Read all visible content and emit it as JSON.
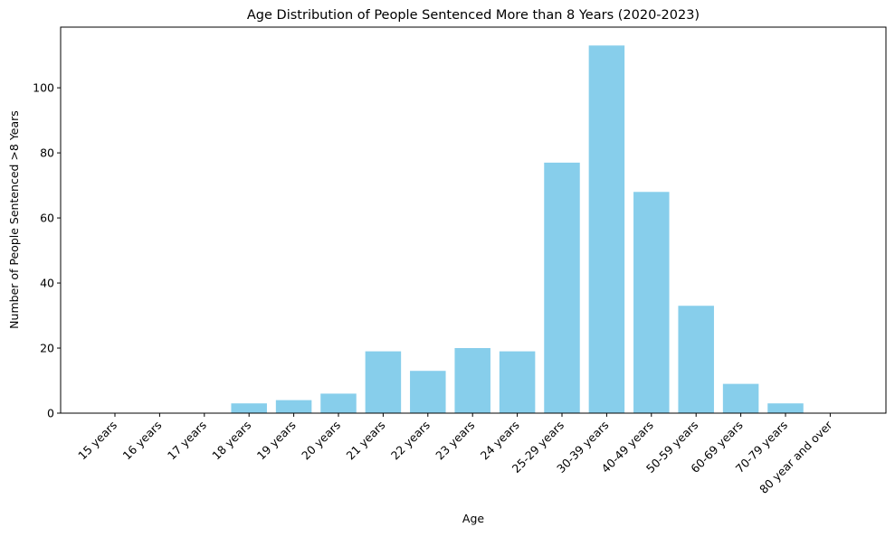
{
  "chart_data": {
    "type": "bar",
    "title": "Age Distribution of People Sentenced More than 8 Years (2020-2023)",
    "xlabel": "Age",
    "ylabel": "Number of People Sentenced >8 Years",
    "categories": [
      "15 years",
      "16 years",
      "17 years",
      "18 years",
      "19 years",
      "20 years",
      "21 years",
      "22 years",
      "23 years",
      "24 years",
      "25-29 years",
      "30-39 years",
      "40-49 years",
      "50-59 years",
      "60-69 years",
      "70-79 years",
      "80 year and over"
    ],
    "values": [
      0,
      0,
      0,
      3,
      4,
      6,
      19,
      13,
      20,
      19,
      77,
      113,
      68,
      33,
      9,
      3,
      0
    ],
    "ylim": [
      0,
      118.65
    ],
    "yticks": [
      0,
      20,
      40,
      60,
      80,
      100
    ],
    "grid": false,
    "legend": "none",
    "bar_color": "#87CEEB",
    "x_tick_rotation_deg": 45
  }
}
